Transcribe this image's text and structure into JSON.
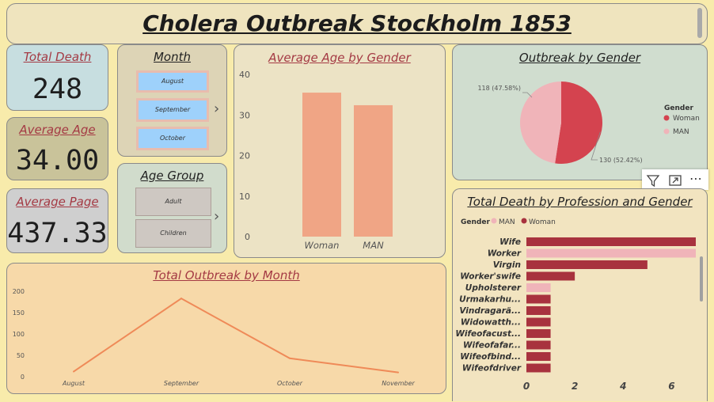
{
  "header": {
    "title": "Cholera Outbreak Stockholm 1853"
  },
  "kpis": {
    "total_death": {
      "label": "Total Death",
      "value": "248"
    },
    "average_age": {
      "label": "Average Age",
      "value": "34.00"
    },
    "average_page": {
      "label": "Average Page",
      "value": "437.33"
    }
  },
  "month_slicer": {
    "title": "Month",
    "options": [
      "August",
      "September",
      "October"
    ]
  },
  "age_group_slicer": {
    "title": "Age Group",
    "options": [
      "Adult",
      "Children"
    ]
  },
  "chevron": "›",
  "visual_toolbar": {
    "icons": [
      "filter-icon",
      "focus-mode-icon",
      "more-options-icon"
    ],
    "more": "⋯"
  },
  "colors": {
    "woman": "#d4434f",
    "man": "#f0b4b9",
    "bar_age": "#f0a585",
    "line": "#ef8a58",
    "prof_woman": "#a8323e"
  },
  "chart_data": [
    {
      "type": "bar",
      "title": "Average Age by Gender",
      "categories": [
        "Woman",
        "MAN"
      ],
      "values": [
        35.5,
        32.4
      ],
      "ylim": [
        0,
        40
      ],
      "yticks": [
        "0",
        "10",
        "20",
        "30",
        "40"
      ]
    },
    {
      "type": "pie",
      "title": "Outbreak by Gender",
      "legend_title": "Gender",
      "slices": [
        {
          "name": "Woman",
          "value": 130,
          "label": "130 (52.42%)"
        },
        {
          "name": "MAN",
          "value": 118,
          "label": "118 (47.58%)"
        }
      ],
      "legend_position": "right"
    },
    {
      "type": "line",
      "title": "Total Outbreak by Month",
      "x": [
        "August",
        "September",
        "October",
        "November"
      ],
      "y": [
        12,
        183,
        43,
        10
      ],
      "ylim": [
        0,
        200
      ],
      "yticks": [
        "0",
        "50",
        "100",
        "150",
        "200"
      ]
    },
    {
      "type": "bar",
      "orientation": "horizontal",
      "title": "Total Death by Profession and Gender",
      "legend_title": "Gender",
      "legend": [
        "MAN",
        "Woman"
      ],
      "categories": [
        "Wife",
        "Worker",
        "Virgin",
        "Worker'swife",
        "Upholsterer",
        "Urmakarhu...",
        "Vindragarä...",
        "Widowatth...",
        "Wifeofacust...",
        "Wifeofafar...",
        "Wifeofbind...",
        "Wifeofdriver"
      ],
      "values": [
        7,
        7,
        5,
        2,
        1,
        1,
        1,
        1,
        1,
        1,
        1,
        1
      ],
      "genders": [
        "Woman",
        "MAN",
        "Woman",
        "Woman",
        "MAN",
        "Woman",
        "Woman",
        "Woman",
        "Woman",
        "Woman",
        "Woman",
        "Woman"
      ],
      "xlim": [
        0,
        7
      ],
      "xticks": [
        "0",
        "2",
        "4",
        "6"
      ]
    }
  ]
}
